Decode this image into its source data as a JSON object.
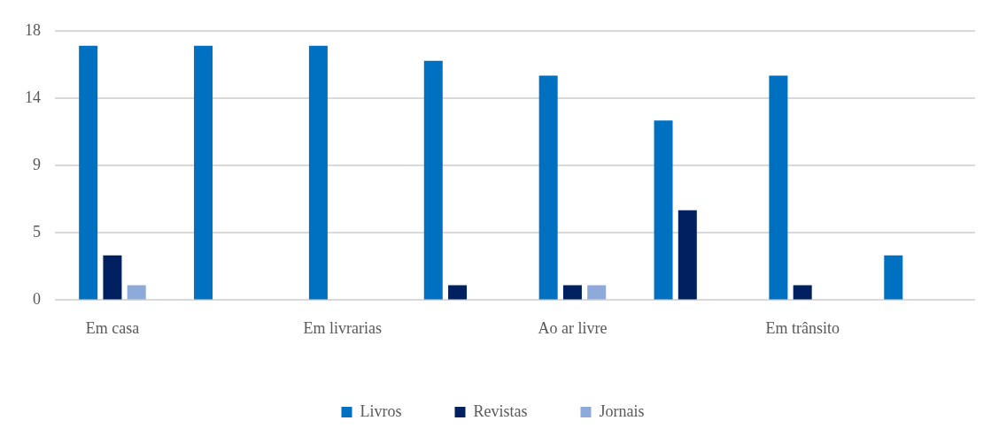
{
  "chart_data": {
    "type": "bar",
    "categories": [
      "Em casa",
      null,
      "Em livrarias",
      null,
      "Ao ar livre",
      null,
      "Em trânsito",
      null
    ],
    "series": [
      {
        "name": "Livros",
        "color": "#0070c0",
        "values": [
          17,
          17,
          17,
          16,
          15,
          12,
          15,
          3
        ]
      },
      {
        "name": "Revistas",
        "color": "#002060",
        "values": [
          3,
          0,
          0,
          1,
          1,
          6,
          1,
          0
        ]
      },
      {
        "name": "Jornais",
        "color": "#8eaadb",
        "values": [
          1,
          0,
          0,
          0,
          1,
          0,
          0,
          0
        ]
      }
    ],
    "ylim": [
      0,
      18
    ],
    "yticks": [
      0,
      {
        "value": 4.5,
        "label": "5"
      },
      9,
      {
        "value": 13.5,
        "label": "14"
      },
      18
    ],
    "grid": "y",
    "legend": "bottom"
  }
}
